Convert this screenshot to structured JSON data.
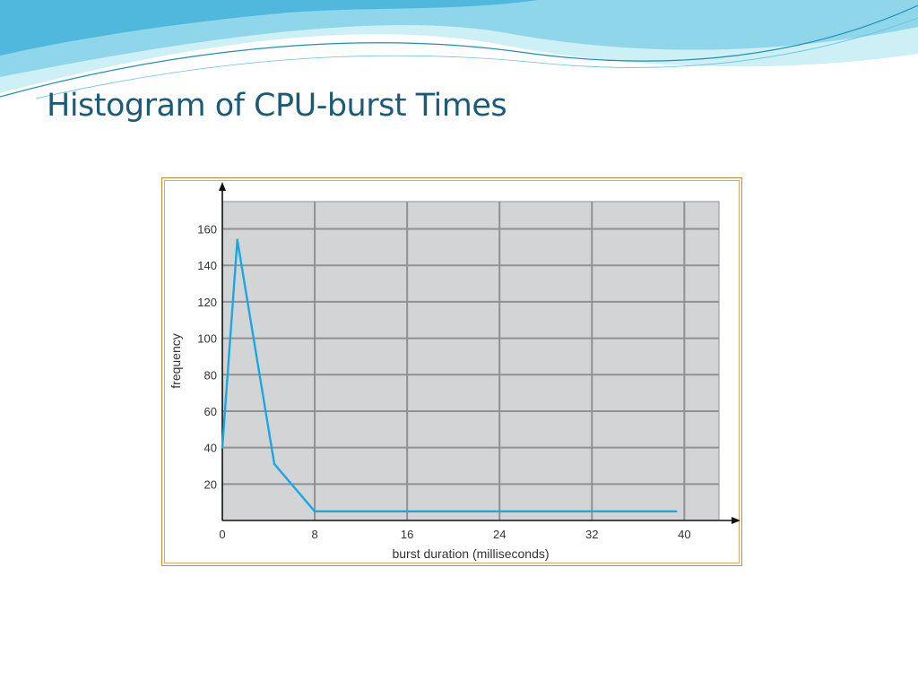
{
  "slide": {
    "title": "Histogram of CPU-burst Times"
  },
  "chart_data": {
    "type": "line",
    "title": "",
    "xlabel": "burst duration (milliseconds)",
    "ylabel": "frequency",
    "xlim": [
      0,
      43
    ],
    "ylim": [
      0,
      175
    ],
    "xticks": [
      0,
      8,
      16,
      24,
      32,
      40
    ],
    "yticks": [
      20,
      40,
      60,
      80,
      100,
      120,
      140,
      160
    ],
    "grid": true,
    "series": [
      {
        "x": [
          0,
          1.3,
          4.5,
          8,
          39.3
        ],
        "values": [
          40,
          154,
          31,
          5,
          5
        ],
        "color": "#1aa8e2"
      }
    ],
    "colors": {
      "plot_background": "#d3d4d6",
      "grid": "#8f9194",
      "line": "#1aa8e2",
      "frame_border": "#d9852e"
    }
  }
}
